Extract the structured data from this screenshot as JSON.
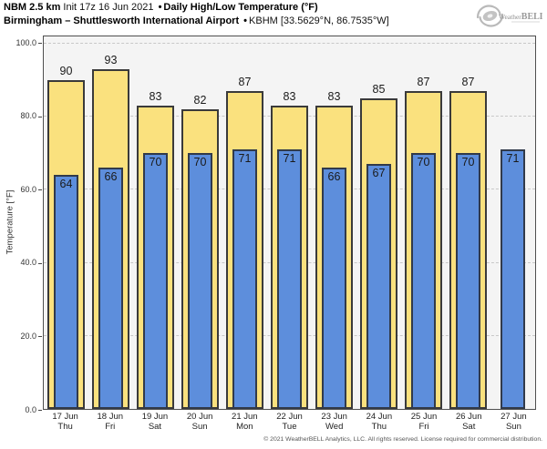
{
  "header": {
    "line1_model": "NBM 2.5 km",
    "line1_init": "Init 17z 16 Jun 2021",
    "line1_sep": "•",
    "line1_product": "Daily High/Low Temperature (°F)",
    "line2_station": "Birmingham – Shuttlesworth International Airport",
    "line2_sep": "•",
    "line2_id": "KBHM [33.5629°N, 86.7535°W]"
  },
  "logo": {
    "brand_left": "Weather",
    "brand_right": "BELL"
  },
  "chart_data": {
    "type": "bar",
    "title": "Daily High/Low Temperature (°F)",
    "ylabel": "Temperature [°F]",
    "ylim": [
      0.0,
      100.0
    ],
    "yticks": [
      0,
      20,
      40,
      60,
      80,
      100
    ],
    "ytick_labels": [
      "0.0",
      "20.0",
      "40.0",
      "60.0",
      "80.0",
      "100.0"
    ],
    "grid": "horizontal-dashed",
    "legend": "none",
    "categories": [
      "17 Jun",
      "18 Jun",
      "19 Jun",
      "20 Jun",
      "21 Jun",
      "22 Jun",
      "23 Jun",
      "24 Jun",
      "25 Jun",
      "26 Jun",
      "27 Jun"
    ],
    "weekdays": [
      "Thu",
      "Fri",
      "Sat",
      "Sun",
      "Mon",
      "Tue",
      "Wed",
      "Thu",
      "Fri",
      "Sat",
      "Sun"
    ],
    "series": [
      {
        "name": "High",
        "color": "#fae17e",
        "values": [
          90,
          93,
          83,
          82,
          87,
          83,
          83,
          85,
          87,
          87,
          null
        ]
      },
      {
        "name": "Low",
        "color": "#5d8edc",
        "values": [
          64,
          66,
          70,
          70,
          71,
          71,
          66,
          67,
          70,
          70,
          71
        ]
      }
    ]
  },
  "footer": {
    "copyright": "© 2021 WeatherBELL Analytics, LLC. All rights reserved. License required for commercial distribution."
  }
}
